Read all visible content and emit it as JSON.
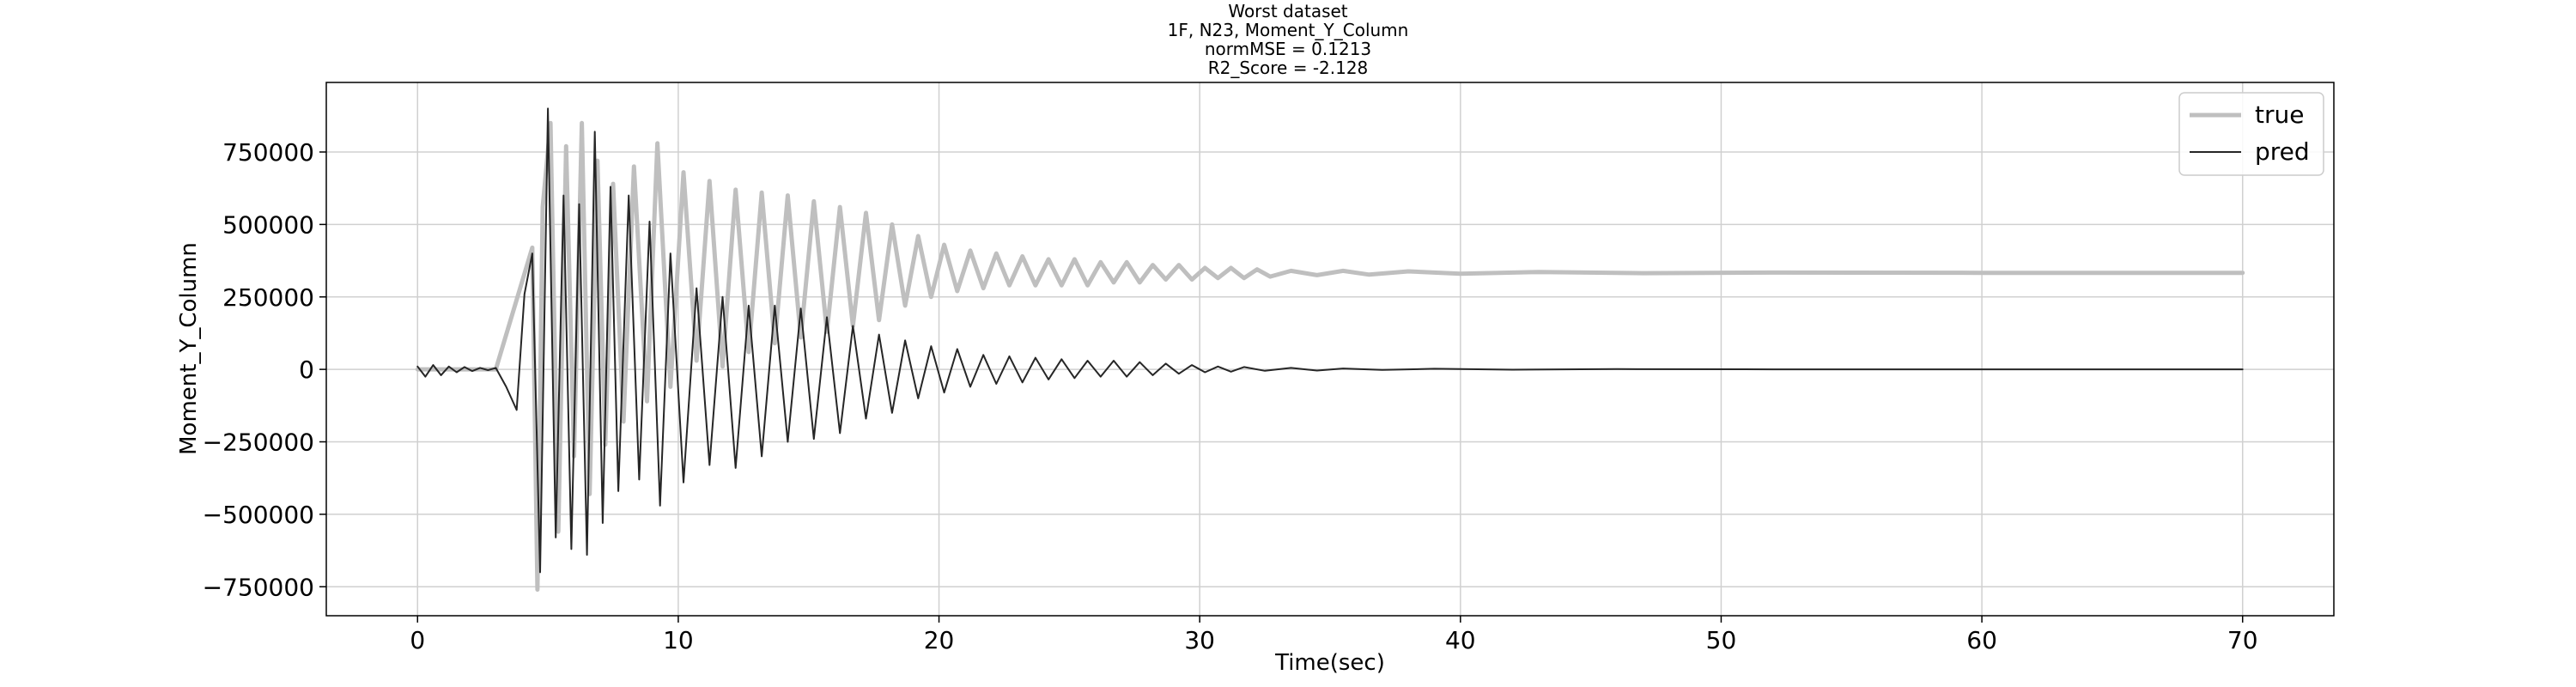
{
  "figure": {
    "title_lines": [
      "Worst dataset",
      "1F, N23, Moment_Y_Column",
      "normMSE = 0.1213",
      "R2_Score = -2.128"
    ]
  },
  "colors": {
    "true": "#bfbfbf",
    "pred": "#262626",
    "grid": "#d0d0d0",
    "axes": "#000000"
  },
  "chart_data": {
    "type": "line",
    "title": "Worst dataset",
    "xlabel": "Time(sec)",
    "ylabel": "Moment_Y_Column",
    "xlim": [
      -3.5,
      73.5
    ],
    "ylim": [
      -850000,
      990000
    ],
    "xticks": [
      0,
      10,
      20,
      30,
      40,
      50,
      60,
      70
    ],
    "xtick_labels": [
      "0",
      "10",
      "20",
      "30",
      "40",
      "50",
      "60",
      "70"
    ],
    "yticks": [
      -750000,
      -500000,
      -250000,
      0,
      250000,
      500000,
      750000
    ],
    "ytick_labels": [
      "−750000",
      "−500000",
      "−250000",
      "0",
      "250000",
      "500000",
      "750000"
    ],
    "grid": true,
    "legend": "top-right",
    "series": [
      {
        "name": "true",
        "line_width": "thick",
        "x": [
          0,
          3,
          4.4,
          4.6,
          4.8,
          5.1,
          5.4,
          5.7,
          6.0,
          6.3,
          6.6,
          6.9,
          7.2,
          7.5,
          7.9,
          8.3,
          8.8,
          9.2,
          9.7,
          10.2,
          10.7,
          11.2,
          11.7,
          12.2,
          12.7,
          13.2,
          13.7,
          14.2,
          14.7,
          15.2,
          15.7,
          16.2,
          16.7,
          17.2,
          17.7,
          18.2,
          18.7,
          19.2,
          19.7,
          20.2,
          20.7,
          21.2,
          21.7,
          22.2,
          22.7,
          23.2,
          23.7,
          24.2,
          24.7,
          25.2,
          25.7,
          26.2,
          26.7,
          27.2,
          27.7,
          28.2,
          28.7,
          29.2,
          29.7,
          30.2,
          30.7,
          31.2,
          31.7,
          32.2,
          32.7,
          33.5,
          34.5,
          35.5,
          36.5,
          38,
          40,
          43,
          47,
          52,
          60,
          70
        ],
        "y": [
          0,
          0,
          420000,
          -760000,
          560000,
          850000,
          -560000,
          770000,
          -300000,
          850000,
          -430000,
          720000,
          -260000,
          640000,
          -180000,
          700000,
          -110000,
          780000,
          -60000,
          680000,
          30000,
          650000,
          10000,
          620000,
          60000,
          610000,
          90000,
          600000,
          110000,
          580000,
          130000,
          560000,
          150000,
          540000,
          170000,
          500000,
          220000,
          460000,
          250000,
          430000,
          270000,
          410000,
          280000,
          400000,
          290000,
          390000,
          290000,
          380000,
          290000,
          380000,
          290000,
          370000,
          300000,
          370000,
          300000,
          360000,
          310000,
          360000,
          310000,
          350000,
          315000,
          350000,
          315000,
          345000,
          320000,
          340000,
          325000,
          340000,
          327000,
          338000,
          330000,
          336000,
          332000,
          334000,
          333000,
          333000
        ]
      },
      {
        "name": "pred",
        "line_width": "thin",
        "x": [
          0,
          0.3,
          0.6,
          0.9,
          1.2,
          1.5,
          1.8,
          2.1,
          2.4,
          2.7,
          3.0,
          3.4,
          3.8,
          4.1,
          4.4,
          4.7,
          5.0,
          5.3,
          5.6,
          5.9,
          6.2,
          6.5,
          6.8,
          7.1,
          7.4,
          7.7,
          8.1,
          8.5,
          8.9,
          9.3,
          9.7,
          10.2,
          10.7,
          11.2,
          11.7,
          12.2,
          12.7,
          13.2,
          13.7,
          14.2,
          14.7,
          15.2,
          15.7,
          16.2,
          16.7,
          17.2,
          17.7,
          18.2,
          18.7,
          19.2,
          19.7,
          20.2,
          20.7,
          21.2,
          21.7,
          22.2,
          22.7,
          23.2,
          23.7,
          24.2,
          24.7,
          25.2,
          25.7,
          26.2,
          26.7,
          27.2,
          27.7,
          28.2,
          28.7,
          29.2,
          29.7,
          30.2,
          30.7,
          31.2,
          31.7,
          32.5,
          33.5,
          34.5,
          35.5,
          37,
          39,
          42,
          46,
          52,
          60,
          70
        ],
        "y": [
          10000,
          -25000,
          15000,
          -20000,
          10000,
          -10000,
          8000,
          -6000,
          5000,
          -3000,
          5000,
          -60000,
          -140000,
          260000,
          400000,
          -700000,
          900000,
          -580000,
          600000,
          -620000,
          570000,
          -640000,
          820000,
          -530000,
          630000,
          -420000,
          600000,
          -380000,
          510000,
          -470000,
          400000,
          -390000,
          280000,
          -330000,
          250000,
          -340000,
          220000,
          -300000,
          220000,
          -250000,
          210000,
          -240000,
          180000,
          -220000,
          150000,
          -170000,
          120000,
          -150000,
          100000,
          -100000,
          80000,
          -80000,
          70000,
          -60000,
          50000,
          -50000,
          45000,
          -45000,
          40000,
          -35000,
          35000,
          -30000,
          30000,
          -25000,
          30000,
          -25000,
          25000,
          -20000,
          20000,
          -15000,
          15000,
          -10000,
          10000,
          -8000,
          8000,
          -5000,
          5000,
          -4000,
          3000,
          -2000,
          2000,
          -1000,
          1000,
          0,
          0,
          0
        ]
      }
    ]
  }
}
